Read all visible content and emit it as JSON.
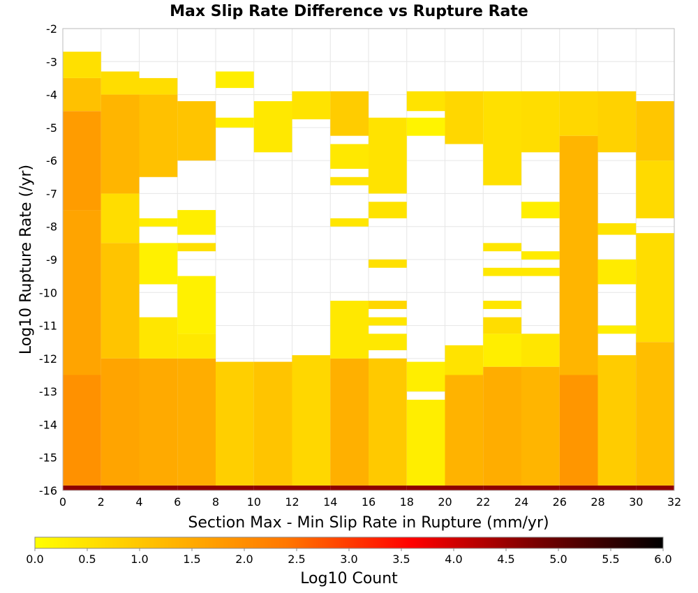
{
  "chart_data": {
    "type": "heatmap",
    "title": "Max Slip Rate Difference vs Rupture Rate",
    "xlabel": "Section Max - Min Slip Rate in Rupture (mm/yr)",
    "ylabel": "Log10 Rupture Rate (/yr)",
    "xlim": [
      0,
      32
    ],
    "ylim": [
      -16,
      -2
    ],
    "x_ticks": [
      "0",
      "2",
      "4",
      "6",
      "8",
      "10",
      "12",
      "14",
      "16",
      "18",
      "20",
      "22",
      "24",
      "26",
      "28",
      "30",
      "32"
    ],
    "y_ticks": [
      "-2",
      "-3",
      "-4",
      "-5",
      "-6",
      "-7",
      "-8",
      "-9",
      "-10",
      "-11",
      "-12",
      "-13",
      "-14",
      "-15",
      "-16"
    ],
    "bin_width_x": 2,
    "bin_height_y": 0.25,
    "grid": true,
    "colorbar": {
      "label": "Log10 Count",
      "range": [
        0,
        6
      ],
      "ticks": [
        "0.0",
        "0.5",
        "1.0",
        "1.5",
        "2.0",
        "2.5",
        "3.0",
        "3.5",
        "4.0",
        "4.5",
        "5.0",
        "5.5",
        "6.0"
      ],
      "colors": [
        "#ffff00",
        "#ffbb00",
        "#ff7700",
        "#ff0000",
        "#770000",
        "#000000"
      ]
    },
    "columns": [
      {
        "x": 0,
        "segments": [
          {
            "y0": -16.0,
            "y1": -15.85,
            "v": 4.6
          },
          {
            "y0": -15.85,
            "y1": -12.5,
            "v": 1.95
          },
          {
            "y0": -12.5,
            "y1": -7.5,
            "v": 1.6
          },
          {
            "y0": -7.5,
            "y1": -4.5,
            "v": 1.75
          },
          {
            "y0": -4.5,
            "y1": -3.5,
            "v": 1.1
          },
          {
            "y0": -3.5,
            "y1": -2.7,
            "v": 0.55
          }
        ]
      },
      {
        "x": 2,
        "segments": [
          {
            "y0": -16.0,
            "y1": -15.85,
            "v": 4.6
          },
          {
            "y0": -15.85,
            "y1": -12.0,
            "v": 1.6
          },
          {
            "y0": -12.0,
            "y1": -8.5,
            "v": 1.05
          },
          {
            "y0": -8.5,
            "y1": -7.0,
            "v": 0.6
          },
          {
            "y0": -7.0,
            "y1": -4.0,
            "v": 1.3
          },
          {
            "y0": -4.0,
            "y1": -3.3,
            "v": 0.6
          }
        ]
      },
      {
        "x": 4,
        "segments": [
          {
            "y0": -16.0,
            "y1": -15.85,
            "v": 4.6
          },
          {
            "y0": -15.85,
            "y1": -12.0,
            "v": 1.5
          },
          {
            "y0": -12.0,
            "y1": -10.75,
            "v": 0.45
          },
          {
            "y0": -9.75,
            "y1": -8.5,
            "v": 0.25
          },
          {
            "y0": -8.0,
            "y1": -7.75,
            "v": 0.3
          },
          {
            "y0": -6.5,
            "y1": -4.0,
            "v": 1.1
          },
          {
            "y0": -4.0,
            "y1": -3.5,
            "v": 0.6
          }
        ]
      },
      {
        "x": 6,
        "segments": [
          {
            "y0": -16.0,
            "y1": -15.85,
            "v": 4.6
          },
          {
            "y0": -15.85,
            "y1": -12.0,
            "v": 1.45
          },
          {
            "y0": -12.0,
            "y1": -11.25,
            "v": 0.4
          },
          {
            "y0": -11.25,
            "y1": -9.5,
            "v": 0.25
          },
          {
            "y0": -8.75,
            "y1": -8.5,
            "v": 0.55
          },
          {
            "y0": -8.25,
            "y1": -7.5,
            "v": 0.3
          },
          {
            "y0": -6.0,
            "y1": -4.2,
            "v": 1.05
          }
        ]
      },
      {
        "x": 8,
        "segments": [
          {
            "y0": -16.0,
            "y1": -15.85,
            "v": 4.6
          },
          {
            "y0": -15.85,
            "y1": -12.1,
            "v": 0.85
          },
          {
            "y0": -5.0,
            "y1": -4.7,
            "v": 0.3
          },
          {
            "y0": -3.8,
            "y1": -3.3,
            "v": 0.3
          }
        ]
      },
      {
        "x": 10,
        "segments": [
          {
            "y0": -16.0,
            "y1": -15.85,
            "v": 4.6
          },
          {
            "y0": -15.85,
            "y1": -12.1,
            "v": 1.05
          },
          {
            "y0": -5.75,
            "y1": -4.2,
            "v": 0.4
          }
        ]
      },
      {
        "x": 12,
        "segments": [
          {
            "y0": -16.0,
            "y1": -15.85,
            "v": 4.6
          },
          {
            "y0": -15.85,
            "y1": -11.9,
            "v": 0.7
          },
          {
            "y0": -4.75,
            "y1": -3.9,
            "v": 0.5
          }
        ]
      },
      {
        "x": 14,
        "segments": [
          {
            "y0": -16.0,
            "y1": -15.85,
            "v": 4.6
          },
          {
            "y0": -15.85,
            "y1": -12.0,
            "v": 1.4
          },
          {
            "y0": -12.0,
            "y1": -10.25,
            "v": 0.4
          },
          {
            "y0": -8.0,
            "y1": -7.75,
            "v": 0.45
          },
          {
            "y0": -6.75,
            "y1": -6.5,
            "v": 0.5
          },
          {
            "y0": -6.25,
            "y1": -5.5,
            "v": 0.4
          },
          {
            "y0": -5.25,
            "y1": -3.9,
            "v": 0.9
          }
        ]
      },
      {
        "x": 16,
        "segments": [
          {
            "y0": -16.0,
            "y1": -15.85,
            "v": 4.6
          },
          {
            "y0": -15.85,
            "y1": -12.0,
            "v": 0.95
          },
          {
            "y0": -11.75,
            "y1": -11.25,
            "v": 0.4
          },
          {
            "y0": -11.0,
            "y1": -10.75,
            "v": 0.45
          },
          {
            "y0": -10.5,
            "y1": -10.25,
            "v": 0.7
          },
          {
            "y0": -9.25,
            "y1": -9.0,
            "v": 0.55
          },
          {
            "y0": -7.75,
            "y1": -7.25,
            "v": 0.5
          },
          {
            "y0": -7.0,
            "y1": -4.7,
            "v": 0.5
          }
        ]
      },
      {
        "x": 18,
        "segments": [
          {
            "y0": -16.0,
            "y1": -15.85,
            "v": 4.6
          },
          {
            "y0": -15.85,
            "y1": -13.25,
            "v": 0.3
          },
          {
            "y0": -13.0,
            "y1": -12.1,
            "v": 0.3
          },
          {
            "y0": -5.25,
            "y1": -4.7,
            "v": 0.2
          },
          {
            "y0": -4.5,
            "y1": -3.9,
            "v": 0.5
          }
        ]
      },
      {
        "x": 20,
        "segments": [
          {
            "y0": -16.0,
            "y1": -15.85,
            "v": 4.6
          },
          {
            "y0": -15.85,
            "y1": -12.5,
            "v": 1.35
          },
          {
            "y0": -12.5,
            "y1": -11.6,
            "v": 0.5
          },
          {
            "y0": -5.5,
            "y1": -3.9,
            "v": 0.7
          }
        ]
      },
      {
        "x": 22,
        "segments": [
          {
            "y0": -16.0,
            "y1": -15.85,
            "v": 4.6
          },
          {
            "y0": -15.85,
            "y1": -12.25,
            "v": 1.45
          },
          {
            "y0": -12.25,
            "y1": -11.25,
            "v": 0.3
          },
          {
            "y0": -11.25,
            "y1": -10.75,
            "v": 0.6
          },
          {
            "y0": -10.5,
            "y1": -10.25,
            "v": 0.45
          },
          {
            "y0": -9.5,
            "y1": -9.25,
            "v": 0.4
          },
          {
            "y0": -8.75,
            "y1": -8.5,
            "v": 0.45
          },
          {
            "y0": -6.75,
            "y1": -3.9,
            "v": 0.55
          }
        ]
      },
      {
        "x": 24,
        "segments": [
          {
            "y0": -16.0,
            "y1": -15.85,
            "v": 4.6
          },
          {
            "y0": -15.85,
            "y1": -12.25,
            "v": 1.3
          },
          {
            "y0": -12.25,
            "y1": -11.25,
            "v": 0.45
          },
          {
            "y0": -9.5,
            "y1": -9.25,
            "v": 0.4
          },
          {
            "y0": -9.0,
            "y1": -8.75,
            "v": 0.35
          },
          {
            "y0": -7.75,
            "y1": -7.25,
            "v": 0.3
          },
          {
            "y0": -5.75,
            "y1": -3.9,
            "v": 0.6
          }
        ]
      },
      {
        "x": 26,
        "segments": [
          {
            "y0": -16.0,
            "y1": -15.85,
            "v": 4.6
          },
          {
            "y0": -15.85,
            "y1": -12.5,
            "v": 1.85
          },
          {
            "y0": -12.5,
            "y1": -5.25,
            "v": 1.3
          },
          {
            "y0": -5.25,
            "y1": -3.9,
            "v": 0.7
          }
        ]
      },
      {
        "x": 28,
        "segments": [
          {
            "y0": -16.0,
            "y1": -15.85,
            "v": 4.6
          },
          {
            "y0": -15.85,
            "y1": -11.9,
            "v": 0.9
          },
          {
            "y0": -11.25,
            "y1": -11.0,
            "v": 0.3
          },
          {
            "y0": -9.75,
            "y1": -9.0,
            "v": 0.35
          },
          {
            "y0": -8.25,
            "y1": -7.9,
            "v": 0.5
          },
          {
            "y0": -5.75,
            "y1": -3.9,
            "v": 0.8
          }
        ]
      },
      {
        "x": 30,
        "segments": [
          {
            "y0": -16.0,
            "y1": -15.85,
            "v": 4.6
          },
          {
            "y0": -15.85,
            "y1": -11.5,
            "v": 1.15
          },
          {
            "y0": -11.5,
            "y1": -8.2,
            "v": 0.6
          },
          {
            "y0": -7.75,
            "y1": -6.0,
            "v": 0.65
          },
          {
            "y0": -6.0,
            "y1": -4.2,
            "v": 1.0
          }
        ]
      }
    ]
  }
}
